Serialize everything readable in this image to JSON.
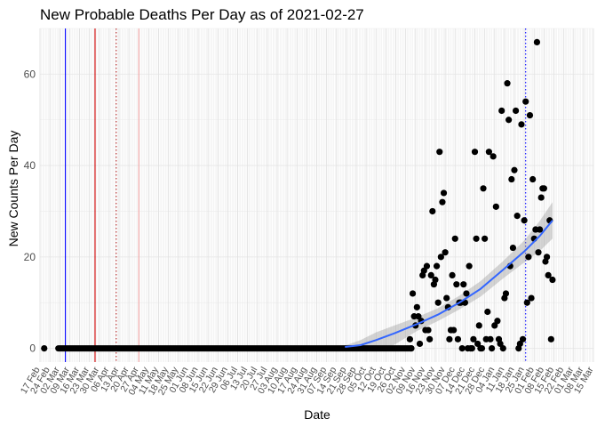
{
  "chart_data": {
    "type": "scatter",
    "title": "New Probable Deaths Per Day as of 2021-02-27",
    "xlabel": "Date",
    "ylabel": "New Counts Per Day",
    "xlim": [
      "2020-02-17",
      "2021-03-15"
    ],
    "ylim": [
      -3,
      70
    ],
    "yticks": [
      0,
      20,
      40,
      60
    ],
    "grid": true,
    "legend": "none",
    "xtick_labels": [
      {
        "date": "2020-02-17",
        "label": "17 Feb"
      },
      {
        "date": "2020-02-24",
        "label": "24 Feb"
      },
      {
        "date": "2020-03-02",
        "label": "02 Mar"
      },
      {
        "date": "2020-03-09",
        "label": "09 Mar"
      },
      {
        "date": "2020-03-16",
        "label": "16 Mar"
      },
      {
        "date": "2020-03-23",
        "label": "23 Mar"
      },
      {
        "date": "2020-03-30",
        "label": "30 Mar"
      },
      {
        "date": "2020-04-06",
        "label": "06 Apr"
      },
      {
        "date": "2020-04-13",
        "label": "13 Apr"
      },
      {
        "date": "2020-04-20",
        "label": "20 Apr"
      },
      {
        "date": "2020-04-27",
        "label": "27 Apr"
      },
      {
        "date": "2020-05-04",
        "label": "04 May"
      },
      {
        "date": "2020-05-11",
        "label": "11 May"
      },
      {
        "date": "2020-05-18",
        "label": "18 May"
      },
      {
        "date": "2020-05-25",
        "label": "25 May"
      },
      {
        "date": "2020-06-01",
        "label": "01 Jun"
      },
      {
        "date": "2020-06-08",
        "label": "08 Jun"
      },
      {
        "date": "2020-06-15",
        "label": "15 Jun"
      },
      {
        "date": "2020-06-22",
        "label": "22 Jun"
      },
      {
        "date": "2020-06-29",
        "label": "29 Jun"
      },
      {
        "date": "2020-07-06",
        "label": "06 Jul"
      },
      {
        "date": "2020-07-13",
        "label": "13 Jul"
      },
      {
        "date": "2020-07-20",
        "label": "20 Jul"
      },
      {
        "date": "2020-07-27",
        "label": "27 Jul"
      },
      {
        "date": "2020-08-03",
        "label": "03 Aug"
      },
      {
        "date": "2020-08-10",
        "label": "10 Aug"
      },
      {
        "date": "2020-08-17",
        "label": "17 Aug"
      },
      {
        "date": "2020-08-24",
        "label": "24 Aug"
      },
      {
        "date": "2020-08-31",
        "label": "31 Aug"
      },
      {
        "date": "2020-09-07",
        "label": "07 Sep"
      },
      {
        "date": "2020-09-14",
        "label": "14 Sep"
      },
      {
        "date": "2020-09-21",
        "label": "21 Sep"
      },
      {
        "date": "2020-09-28",
        "label": "28 Sep"
      },
      {
        "date": "2020-10-05",
        "label": "05 Oct"
      },
      {
        "date": "2020-10-12",
        "label": "12 Oct"
      },
      {
        "date": "2020-10-19",
        "label": "19 Oct"
      },
      {
        "date": "2020-10-26",
        "label": "26 Oct"
      },
      {
        "date": "2020-11-02",
        "label": "02 Nov"
      },
      {
        "date": "2020-11-09",
        "label": "09 Nov"
      },
      {
        "date": "2020-11-16",
        "label": "16 Nov"
      },
      {
        "date": "2020-11-23",
        "label": "23 Nov"
      },
      {
        "date": "2020-11-30",
        "label": "30 Nov"
      },
      {
        "date": "2020-12-07",
        "label": "07 Dec"
      },
      {
        "date": "2020-12-14",
        "label": "14 Dec"
      },
      {
        "date": "2020-12-21",
        "label": "21 Dec"
      },
      {
        "date": "2020-12-28",
        "label": "28 Dec"
      },
      {
        "date": "2021-01-04",
        "label": "04 Jan"
      },
      {
        "date": "2021-01-11",
        "label": "11 Jan"
      },
      {
        "date": "2021-01-18",
        "label": "18 Jan"
      },
      {
        "date": "2021-01-25",
        "label": "25 Jan"
      },
      {
        "date": "2021-02-01",
        "label": "01 Feb"
      },
      {
        "date": "2021-02-08",
        "label": "08 Feb"
      },
      {
        "date": "2021-02-15",
        "label": "15 Feb"
      },
      {
        "date": "2021-02-22",
        "label": "22 Feb"
      },
      {
        "date": "2021-03-01",
        "label": "01 Mar"
      },
      {
        "date": "2021-03-08",
        "label": "08 Mar"
      },
      {
        "date": "2021-03-15",
        "label": "15 Mar"
      }
    ],
    "reference_lines": [
      {
        "date": "2020-03-06",
        "color": "#0000ff",
        "style": "solid"
      },
      {
        "date": "2020-03-27",
        "color": "#cc0000",
        "style": "solid"
      },
      {
        "date": "2020-04-11",
        "color": "#b22222",
        "style": "dotted"
      },
      {
        "date": "2020-04-27",
        "color": "#f4a6a6",
        "style": "solid"
      },
      {
        "date": "2021-01-26",
        "color": "#0000ff",
        "style": "dotted"
      }
    ],
    "colors": {
      "points": "#000000",
      "trend": "#3366ff",
      "band": "#999999",
      "grid": "#ebebeb"
    },
    "zero_range": {
      "start": "2020-03-01",
      "end": "2020-11-06"
    },
    "points": [
      {
        "x": "2020-02-20",
        "y": 0
      },
      {
        "x": "2020-11-05",
        "y": 2
      },
      {
        "x": "2020-11-06",
        "y": 0
      },
      {
        "x": "2020-11-07",
        "y": 12
      },
      {
        "x": "2020-11-08",
        "y": 7
      },
      {
        "x": "2020-11-09",
        "y": 5
      },
      {
        "x": "2020-11-10",
        "y": 9
      },
      {
        "x": "2020-11-11",
        "y": 7
      },
      {
        "x": "2020-11-12",
        "y": 1
      },
      {
        "x": "2020-11-13",
        "y": 6
      },
      {
        "x": "2020-11-14",
        "y": 16
      },
      {
        "x": "2020-11-15",
        "y": 17
      },
      {
        "x": "2020-11-16",
        "y": 4
      },
      {
        "x": "2020-11-17",
        "y": 18
      },
      {
        "x": "2020-11-18",
        "y": 4
      },
      {
        "x": "2020-11-19",
        "y": 2
      },
      {
        "x": "2020-11-20",
        "y": 16
      },
      {
        "x": "2020-11-21",
        "y": 30
      },
      {
        "x": "2020-11-22",
        "y": 14
      },
      {
        "x": "2020-11-23",
        "y": 15
      },
      {
        "x": "2020-11-24",
        "y": 18
      },
      {
        "x": "2020-11-25",
        "y": 10
      },
      {
        "x": "2020-11-26",
        "y": 43
      },
      {
        "x": "2020-11-27",
        "y": 20
      },
      {
        "x": "2020-11-28",
        "y": 32
      },
      {
        "x": "2020-11-29",
        "y": 34
      },
      {
        "x": "2020-11-30",
        "y": 21
      },
      {
        "x": "2020-12-01",
        "y": 11
      },
      {
        "x": "2020-12-02",
        "y": 9
      },
      {
        "x": "2020-12-03",
        "y": 2
      },
      {
        "x": "2020-12-04",
        "y": 4
      },
      {
        "x": "2020-12-05",
        "y": 16
      },
      {
        "x": "2020-12-06",
        "y": 4
      },
      {
        "x": "2020-12-07",
        "y": 24
      },
      {
        "x": "2020-12-08",
        "y": 14
      },
      {
        "x": "2020-12-09",
        "y": 2
      },
      {
        "x": "2020-12-10",
        "y": 10
      },
      {
        "x": "2020-12-11",
        "y": 10
      },
      {
        "x": "2020-12-12",
        "y": 0
      },
      {
        "x": "2020-12-13",
        "y": 14
      },
      {
        "x": "2020-12-14",
        "y": 10
      },
      {
        "x": "2020-12-15",
        "y": 12
      },
      {
        "x": "2020-12-16",
        "y": 0
      },
      {
        "x": "2020-12-17",
        "y": 18
      },
      {
        "x": "2020-12-18",
        "y": 0
      },
      {
        "x": "2020-12-19",
        "y": 0
      },
      {
        "x": "2020-12-20",
        "y": 2
      },
      {
        "x": "2020-12-21",
        "y": 43
      },
      {
        "x": "2020-12-22",
        "y": 24
      },
      {
        "x": "2020-12-23",
        "y": 1
      },
      {
        "x": "2020-12-24",
        "y": 5
      },
      {
        "x": "2020-12-25",
        "y": 0
      },
      {
        "x": "2020-12-26",
        "y": 0
      },
      {
        "x": "2020-12-27",
        "y": 35
      },
      {
        "x": "2020-12-28",
        "y": 24
      },
      {
        "x": "2020-12-29",
        "y": 2
      },
      {
        "x": "2020-12-30",
        "y": 8
      },
      {
        "x": "2020-12-31",
        "y": 43
      },
      {
        "x": "2021-01-01",
        "y": 2
      },
      {
        "x": "2021-01-02",
        "y": 0
      },
      {
        "x": "2021-01-03",
        "y": 42
      },
      {
        "x": "2021-01-04",
        "y": 5
      },
      {
        "x": "2021-01-05",
        "y": 31
      },
      {
        "x": "2021-01-06",
        "y": 6
      },
      {
        "x": "2021-01-07",
        "y": 2
      },
      {
        "x": "2021-01-08",
        "y": 1
      },
      {
        "x": "2021-01-09",
        "y": 52
      },
      {
        "x": "2021-01-10",
        "y": 0
      },
      {
        "x": "2021-01-11",
        "y": 11
      },
      {
        "x": "2021-01-12",
        "y": 12
      },
      {
        "x": "2021-01-13",
        "y": 58
      },
      {
        "x": "2021-01-14",
        "y": 50
      },
      {
        "x": "2021-01-15",
        "y": 18
      },
      {
        "x": "2021-01-16",
        "y": 37
      },
      {
        "x": "2021-01-17",
        "y": 22
      },
      {
        "x": "2021-01-18",
        "y": 39
      },
      {
        "x": "2021-01-19",
        "y": 52
      },
      {
        "x": "2021-01-20",
        "y": 29
      },
      {
        "x": "2021-01-21",
        "y": 0
      },
      {
        "x": "2021-01-22",
        "y": 1
      },
      {
        "x": "2021-01-23",
        "y": 49
      },
      {
        "x": "2021-01-24",
        "y": 2
      },
      {
        "x": "2021-01-25",
        "y": 28
      },
      {
        "x": "2021-01-26",
        "y": 54
      },
      {
        "x": "2021-01-27",
        "y": 10
      },
      {
        "x": "2021-01-28",
        "y": 20
      },
      {
        "x": "2021-01-29",
        "y": 51
      },
      {
        "x": "2021-01-30",
        "y": 11
      },
      {
        "x": "2021-01-31",
        "y": 37
      },
      {
        "x": "2021-02-01",
        "y": 24
      },
      {
        "x": "2021-02-02",
        "y": 26
      },
      {
        "x": "2021-02-03",
        "y": 67
      },
      {
        "x": "2021-02-04",
        "y": 21
      },
      {
        "x": "2021-02-05",
        "y": 26
      },
      {
        "x": "2021-02-06",
        "y": 33
      },
      {
        "x": "2021-02-07",
        "y": 35
      },
      {
        "x": "2021-02-08",
        "y": 35
      },
      {
        "x": "2021-02-09",
        "y": 19
      },
      {
        "x": "2021-02-10",
        "y": 20
      },
      {
        "x": "2021-02-11",
        "y": 16
      },
      {
        "x": "2021-02-12",
        "y": 28
      },
      {
        "x": "2021-02-13",
        "y": 2
      },
      {
        "x": "2021-02-14",
        "y": 15
      }
    ],
    "trend": [
      {
        "x": "2020-09-20",
        "y": 0.3,
        "lo": 0.0,
        "hi": 0.6
      },
      {
        "x": "2020-10-01",
        "y": 0.7,
        "lo": -0.5,
        "hi": 1.8
      },
      {
        "x": "2020-10-12",
        "y": 1.8,
        "lo": -0.5,
        "hi": 3.5
      },
      {
        "x": "2020-10-25",
        "y": 3.3,
        "lo": 0.8,
        "hi": 5.0
      },
      {
        "x": "2020-11-10",
        "y": 5.3,
        "lo": 3.8,
        "hi": 6.8
      },
      {
        "x": "2020-11-25",
        "y": 7.4,
        "lo": 6.0,
        "hi": 8.8
      },
      {
        "x": "2020-12-10",
        "y": 10.0,
        "lo": 8.5,
        "hi": 11.5
      },
      {
        "x": "2020-12-25",
        "y": 13.0,
        "lo": 11.3,
        "hi": 14.7
      },
      {
        "x": "2021-01-10",
        "y": 17.2,
        "lo": 15.3,
        "hi": 19.1
      },
      {
        "x": "2021-01-25",
        "y": 21.2,
        "lo": 18.8,
        "hi": 23.6
      },
      {
        "x": "2021-02-05",
        "y": 24.6,
        "lo": 21.3,
        "hi": 27.9
      },
      {
        "x": "2021-02-14",
        "y": 28.0,
        "lo": 24.0,
        "hi": 32.0
      }
    ]
  }
}
